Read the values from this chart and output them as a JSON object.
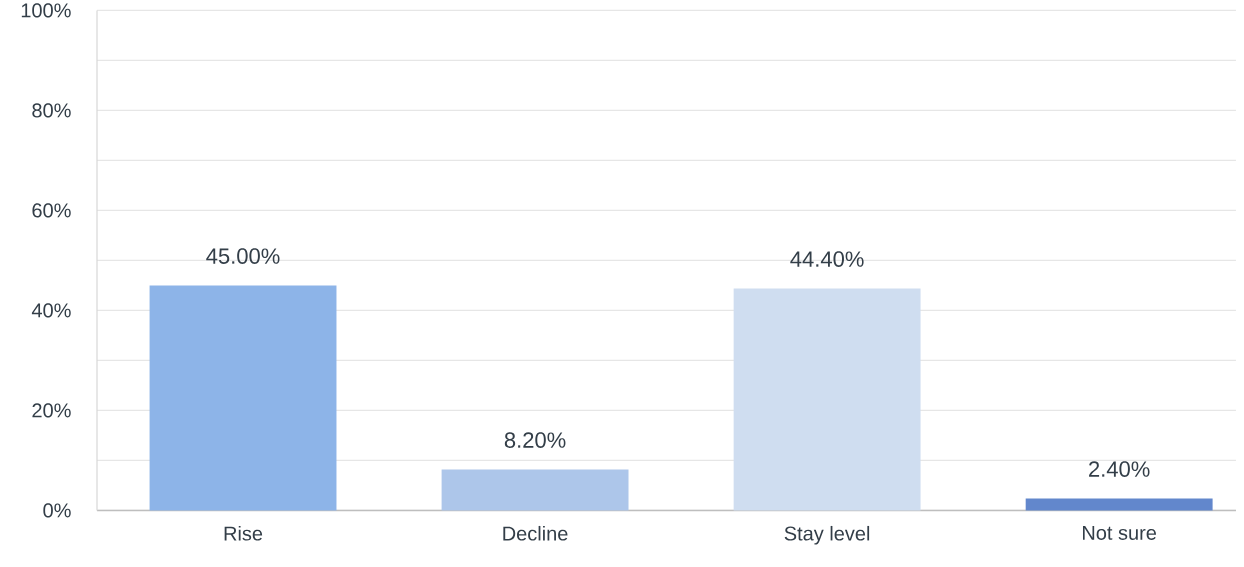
{
  "chart_data": {
    "type": "bar",
    "categories": [
      "Rise",
      "Decline",
      "Stay level",
      "Not sure"
    ],
    "values": [
      45.0,
      8.2,
      44.4,
      2.4
    ],
    "value_labels": [
      "45.00%",
      "8.20%",
      "44.40%",
      "2.40%"
    ],
    "colors": [
      "#8db4e8",
      "#adc6ea",
      "#cfddf0",
      "#6287cc"
    ],
    "ylim": [
      0,
      100
    ],
    "yticks": [
      {
        "value": 0,
        "label": "0%"
      },
      {
        "value": 10,
        "label": null
      },
      {
        "value": 20,
        "label": "20%"
      },
      {
        "value": 30,
        "label": null
      },
      {
        "value": 40,
        "label": "40%"
      },
      {
        "value": 50,
        "label": null
      },
      {
        "value": 60,
        "label": "60%"
      },
      {
        "value": 70,
        "label": null
      },
      {
        "value": 80,
        "label": "80%"
      },
      {
        "value": 90,
        "label": null
      },
      {
        "value": 100,
        "label": "100%"
      }
    ],
    "grid": "y"
  }
}
